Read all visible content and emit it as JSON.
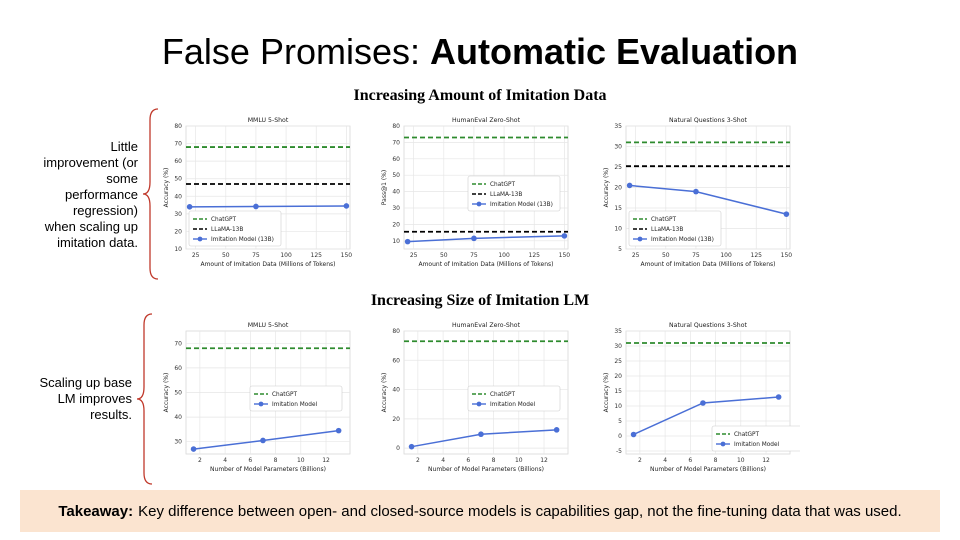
{
  "slide": {
    "title_plain": "False Promises: ",
    "title_bold": "Automatic Evaluation",
    "row1_title": "Increasing Amount of Imitation Data",
    "row2_title": "Increasing Size of Imitation LM",
    "note1_lines": [
      "Little",
      "improvement (or",
      "some",
      "performance",
      "regression)",
      "when scaling up",
      "imitation data."
    ],
    "note2_lines": [
      "Scaling up base",
      "LM improves",
      "results."
    ],
    "takeaway_label": "Takeaway:",
    "takeaway_text": "Key difference between open- and closed-source models is capabilities gap, not the fine-tuning data that was used."
  },
  "colors": {
    "chatgpt": "#2e8b2e",
    "llama": "#000000",
    "imitation": "#4a6fd6",
    "brace": "#c0392b",
    "takeaway_bg": "#fbe4d0"
  },
  "chart_data": [
    {
      "type": "line",
      "title": "MMLU 5-Shot",
      "xlabel": "Amount of Imitation Data (Millions of Tokens)",
      "ylabel": "Accuracy (%)",
      "xlim": [
        17,
        153
      ],
      "ylim": [
        10,
        80
      ],
      "xticks": [
        25,
        50,
        75,
        100,
        125,
        150
      ],
      "yticks": [
        10,
        20,
        30,
        40,
        50,
        60,
        70,
        80
      ],
      "legend": "lower-left",
      "grid": true,
      "series": [
        {
          "name": "ChatGPT",
          "style": "hline",
          "value": 68
        },
        {
          "name": "LLaMA-13B",
          "style": "hline",
          "value": 47
        },
        {
          "name": "Imitation Model (13B)",
          "style": "markers",
          "x": [
            20,
            75,
            150
          ],
          "y": [
            34,
            34.2,
            34.5
          ]
        }
      ]
    },
    {
      "type": "line",
      "title": "HumanEval Zero-Shot",
      "xlabel": "Amount of Imitation Data (Millions of Tokens)",
      "ylabel": "Pass@1 (%)",
      "xlim": [
        17,
        153
      ],
      "ylim": [
        5,
        80
      ],
      "xticks": [
        25,
        50,
        75,
        100,
        125,
        150
      ],
      "yticks": [
        10,
        20,
        30,
        40,
        50,
        60,
        70,
        80
      ],
      "legend": "center-right",
      "grid": true,
      "series": [
        {
          "name": "ChatGPT",
          "style": "hline",
          "value": 73
        },
        {
          "name": "LLaMA-13B",
          "style": "hline",
          "value": 15.5
        },
        {
          "name": "Imitation Model (13B)",
          "style": "markers",
          "x": [
            20,
            75,
            150
          ],
          "y": [
            9.5,
            11.5,
            13
          ]
        }
      ]
    },
    {
      "type": "line",
      "title": "Natural Questions 3-Shot",
      "xlabel": "Amount of Imitation Data (Millions of Tokens)",
      "ylabel": "Accuracy (%)",
      "xlim": [
        17,
        153
      ],
      "ylim": [
        5,
        35
      ],
      "xticks": [
        25,
        50,
        75,
        100,
        125,
        150
      ],
      "yticks": [
        5,
        10,
        15,
        20,
        25,
        30,
        35
      ],
      "legend": "lower-left",
      "grid": true,
      "series": [
        {
          "name": "ChatGPT",
          "style": "hline",
          "value": 31
        },
        {
          "name": "LLaMA-13B",
          "style": "hline",
          "value": 25.2
        },
        {
          "name": "Imitation Model (13B)",
          "style": "markers",
          "x": [
            20,
            75,
            150
          ],
          "y": [
            20.5,
            19,
            13.5
          ]
        }
      ]
    },
    {
      "type": "line",
      "title": "MMLU 5-Shot",
      "xlabel": "Number of Model Parameters (Billions)",
      "ylabel": "Accuracy (%)",
      "xlim": [
        0.9,
        13.9
      ],
      "ylim": [
        25,
        75
      ],
      "xticks": [
        2,
        4,
        6,
        8,
        10,
        12
      ],
      "yticks": [
        30,
        40,
        50,
        60,
        70
      ],
      "legend": "center-right",
      "grid": true,
      "series": [
        {
          "name": "ChatGPT",
          "style": "hline",
          "value": 68
        },
        {
          "name": "Imitation Model",
          "style": "markers",
          "x": [
            1.5,
            7,
            13
          ],
          "y": [
            27,
            30.5,
            34.5
          ]
        }
      ]
    },
    {
      "type": "line",
      "title": "HumanEval Zero-Shot",
      "xlabel": "Number of Model Parameters (Billions)",
      "ylabel": "Accuracy (%)",
      "xlim": [
        0.9,
        13.9
      ],
      "ylim": [
        -4,
        80
      ],
      "xticks": [
        2,
        4,
        6,
        8,
        10,
        12
      ],
      "yticks": [
        0,
        20,
        40,
        60,
        80
      ],
      "legend": "center-right",
      "grid": true,
      "series": [
        {
          "name": "ChatGPT",
          "style": "hline",
          "value": 73
        },
        {
          "name": "Imitation Model",
          "style": "markers",
          "x": [
            1.5,
            7,
            13
          ],
          "y": [
            1,
            9.5,
            12.5
          ]
        }
      ]
    },
    {
      "type": "line",
      "title": "Natural Questions 3-Shot",
      "xlabel": "Number of Model Parameters (Billions)",
      "ylabel": "Accuracy (%)",
      "xlim": [
        0.9,
        13.9
      ],
      "ylim": [
        -6,
        35
      ],
      "xticks": [
        2,
        4,
        6,
        8,
        10,
        12
      ],
      "yticks": [
        -5,
        0,
        5,
        10,
        15,
        20,
        25,
        30,
        35
      ],
      "legend": "lower-right",
      "grid": true,
      "series": [
        {
          "name": "ChatGPT",
          "style": "hline",
          "value": 31
        },
        {
          "name": "Imitation Model",
          "style": "markers",
          "x": [
            1.5,
            7,
            13
          ],
          "y": [
            0.5,
            11,
            13
          ]
        }
      ]
    }
  ]
}
